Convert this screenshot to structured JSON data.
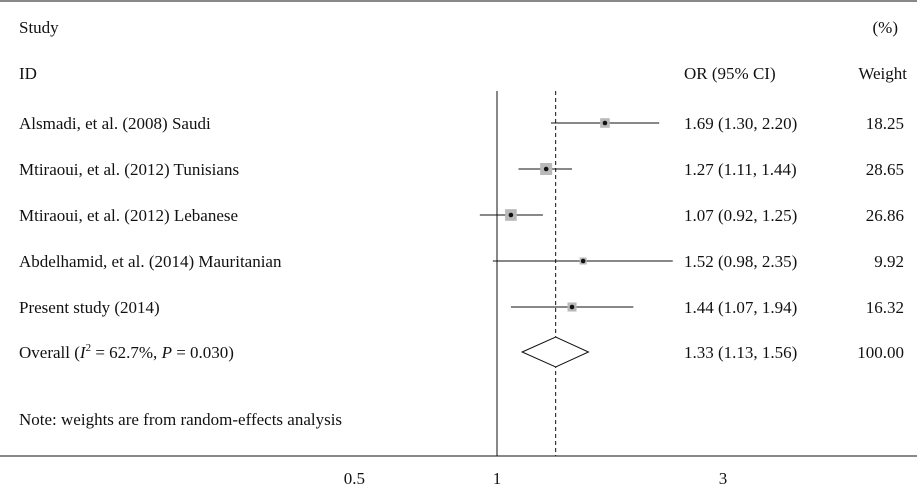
{
  "chart_data": {
    "type": "forest",
    "header": {
      "study_line1": "Study",
      "study_line2": "ID",
      "or_label": "OR (95% CI)",
      "weight_line1": "(%)",
      "weight_line2": "Weight"
    },
    "x_scale": "log",
    "xlim": [
      0.5,
      3
    ],
    "x_ticks": [
      {
        "value": 0.5,
        "label": "0.5"
      },
      {
        "value": 1,
        "label": "1"
      },
      {
        "value": 3,
        "label": "3"
      }
    ],
    "null_line": 1,
    "pooled_line": 1.33,
    "studies": [
      {
        "label": "Alsmadi, et al. (2008) Saudi",
        "or": 1.69,
        "lo": 1.3,
        "hi": 2.2,
        "ci_text": "1.69 (1.30, 2.20)",
        "weight": 18.25,
        "weight_text": "18.25"
      },
      {
        "label": "Mtiraoui, et al. (2012) Tunisians",
        "or": 1.27,
        "lo": 1.11,
        "hi": 1.44,
        "ci_text": "1.27 (1.11, 1.44)",
        "weight": 28.65,
        "weight_text": "28.65"
      },
      {
        "label": "Mtiraoui, et al. (2012) Lebanese",
        "or": 1.07,
        "lo": 0.92,
        "hi": 1.25,
        "ci_text": "1.07 (0.92, 1.25)",
        "weight": 26.86,
        "weight_text": "26.86"
      },
      {
        "label": "Abdelhamid, et al. (2014) Mauritanian",
        "or": 1.52,
        "lo": 0.98,
        "hi": 2.35,
        "ci_text": "1.52 (0.98, 2.35)",
        "weight": 9.92,
        "weight_text": "9.92"
      },
      {
        "label": "Present study (2014)",
        "or": 1.44,
        "lo": 1.07,
        "hi": 1.94,
        "ci_text": "1.44 (1.07, 1.94)",
        "weight": 16.32,
        "weight_text": "16.32"
      }
    ],
    "overall": {
      "label_prefix": "Overall (",
      "i_symbol": "I",
      "i_exp": "2",
      "label_rest": " = 62.7%, ",
      "p_symbol": "P",
      "p_rest": " = 0.030)",
      "or": 1.33,
      "lo": 1.13,
      "hi": 1.56,
      "ci_text": "1.33 (1.13, 1.56)",
      "weight_text": "100.00"
    },
    "note": "Note: weights are from random-effects analysis",
    "colors": {
      "box": "#b9b9b9",
      "line": "#111111"
    }
  }
}
